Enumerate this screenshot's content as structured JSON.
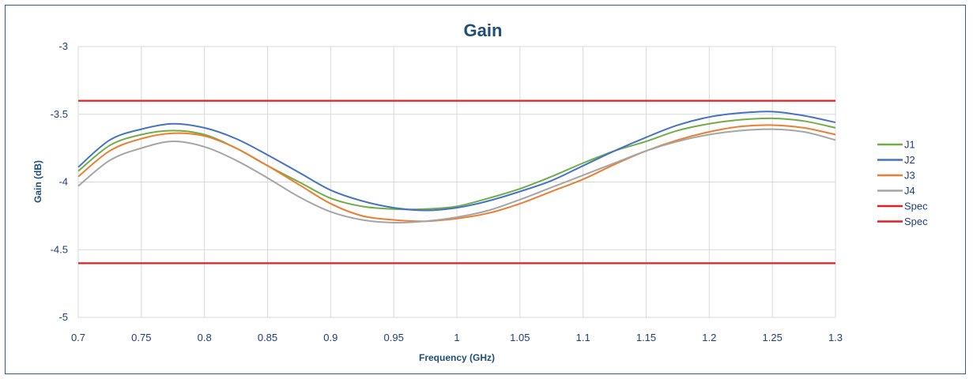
{
  "chart_data": {
    "type": "line",
    "title": "Gain",
    "xlabel": "Frequency (GHz)",
    "ylabel": "Gain (dB)",
    "xlim": [
      0.7,
      1.3
    ],
    "ylim": [
      -5,
      -3
    ],
    "x_ticks": [
      "0.7",
      "0.75",
      "0.8",
      "0.85",
      "0.9",
      "0.95",
      "1",
      "1.05",
      "1.1",
      "1.15",
      "1.2",
      "1.25",
      "1.3"
    ],
    "y_ticks": [
      "-3",
      "-3.5",
      "-4",
      "-4.5",
      "-5"
    ],
    "grid": "on",
    "legend_position": "right",
    "x": [
      0.7,
      0.725,
      0.75,
      0.775,
      0.8,
      0.825,
      0.85,
      0.875,
      0.9,
      0.925,
      0.95,
      0.975,
      1.0,
      1.025,
      1.05,
      1.075,
      1.1,
      1.125,
      1.15,
      1.175,
      1.2,
      1.225,
      1.25,
      1.275,
      1.3
    ],
    "series": [
      {
        "name": "J1",
        "color": "#70ad47",
        "values": [
          -3.92,
          -3.73,
          -3.65,
          -3.62,
          -3.65,
          -3.75,
          -3.88,
          -4.0,
          -4.12,
          -4.18,
          -4.2,
          -4.2,
          -4.18,
          -4.12,
          -4.05,
          -3.96,
          -3.86,
          -3.77,
          -3.7,
          -3.62,
          -3.57,
          -3.54,
          -3.53,
          -3.55,
          -3.6
        ]
      },
      {
        "name": "J2",
        "color": "#4472c4",
        "values": [
          -3.89,
          -3.69,
          -3.61,
          -3.57,
          -3.6,
          -3.68,
          -3.8,
          -3.93,
          -4.06,
          -4.14,
          -4.19,
          -4.21,
          -4.19,
          -4.14,
          -4.07,
          -3.99,
          -3.88,
          -3.77,
          -3.67,
          -3.58,
          -3.52,
          -3.49,
          -3.48,
          -3.51,
          -3.56
        ]
      },
      {
        "name": "J3",
        "color": "#ed7d31",
        "values": [
          -3.96,
          -3.77,
          -3.68,
          -3.64,
          -3.66,
          -3.75,
          -3.88,
          -4.02,
          -4.16,
          -4.25,
          -4.28,
          -4.29,
          -4.27,
          -4.23,
          -4.16,
          -4.07,
          -3.98,
          -3.87,
          -3.77,
          -3.69,
          -3.63,
          -3.59,
          -3.58,
          -3.6,
          -3.65
        ]
      },
      {
        "name": "J4",
        "color": "#a5a5a5",
        "values": [
          -4.03,
          -3.84,
          -3.75,
          -3.7,
          -3.74,
          -3.84,
          -3.97,
          -4.11,
          -4.22,
          -4.28,
          -4.3,
          -4.29,
          -4.26,
          -4.21,
          -4.13,
          -4.04,
          -3.95,
          -3.86,
          -3.77,
          -3.7,
          -3.65,
          -3.62,
          -3.61,
          -3.63,
          -3.69
        ]
      },
      {
        "name": "Spec",
        "color": "#e02020",
        "values": [
          -3.4,
          -3.4,
          -3.4,
          -3.4,
          -3.4,
          -3.4,
          -3.4,
          -3.4,
          -3.4,
          -3.4,
          -3.4,
          -3.4,
          -3.4,
          -3.4,
          -3.4,
          -3.4,
          -3.4,
          -3.4,
          -3.4,
          -3.4,
          -3.4,
          -3.4,
          -3.4,
          -3.4,
          -3.4
        ]
      },
      {
        "name": "Spec",
        "color": "#e02020",
        "values": [
          -4.6,
          -4.6,
          -4.6,
          -4.6,
          -4.6,
          -4.6,
          -4.6,
          -4.6,
          -4.6,
          -4.6,
          -4.6,
          -4.6,
          -4.6,
          -4.6,
          -4.6,
          -4.6,
          -4.6,
          -4.6,
          -4.6,
          -4.6,
          -4.6,
          -4.6,
          -4.6,
          -4.6,
          -4.6
        ]
      }
    ],
    "colors": {
      "gridline": "#d9d9d9",
      "frame": "#2f5f8a",
      "title": "#1f4e79"
    }
  }
}
